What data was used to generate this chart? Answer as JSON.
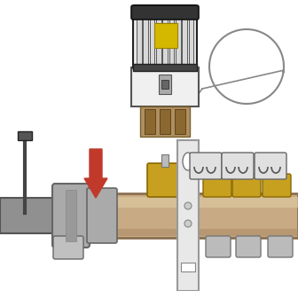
{
  "bg_color": "#ffffff",
  "arrow_color": "#c0392b",
  "pipe_color": "#c8aa85",
  "pipe_edge_color": "#8a7050",
  "pipe_highlight": "#ddc8a0",
  "bracket_color": "#e8e8e8",
  "bracket_edge_color": "#999999",
  "coil_color": "#888888",
  "fitting_gold_color": "#c8a020",
  "fitting_gold_edge": "#8a6800",
  "fitting_silver_color": "#cccccc",
  "fitting_silver_edge": "#888888",
  "thermostat_body_white": "#f0f0f0",
  "thermostat_body_edge": "#555555",
  "thermostat_head_dark": "#444444",
  "thermostat_rib_color": "#dddddd",
  "thermostat_rib_edge": "#555555",
  "thermostat_yellow": "#d4b800",
  "thermostat_tan": "#b09060",
  "thermostat_tan_edge": "#7a6030",
  "pipe_dark_gray": "#888888",
  "nut_color": "#aaaaaa",
  "nut_edge": "#666666"
}
